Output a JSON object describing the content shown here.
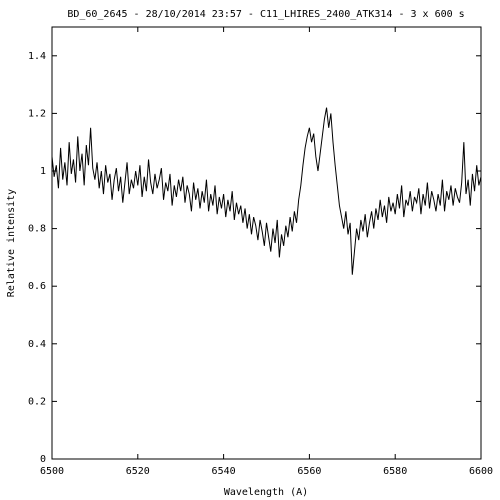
{
  "chart_data": {
    "type": "line",
    "title": "BD_60_2645 - 28/10/2014 23:57 - C11_LHIRES_2400_ATK314 - 3 x 600 s",
    "x_label": "Wavelength (A)",
    "y_label": "Relative intensity",
    "xlim": [
      6500,
      6600
    ],
    "xticks": [
      6500,
      6520,
      6540,
      6560,
      6580,
      6600
    ],
    "ylim": [
      0,
      1.5
    ],
    "yticks": [
      0,
      0.2,
      0.4,
      0.6,
      0.8,
      1,
      1.2,
      1.4
    ],
    "x": [
      6500,
      6500.5,
      6501,
      6501.5,
      6502,
      6502.5,
      6503,
      6503.5,
      6504,
      6504.5,
      6505,
      6505.5,
      6506,
      6506.5,
      6507,
      6507.5,
      6508,
      6508.5,
      6509,
      6509.5,
      6510,
      6510.5,
      6511,
      6511.5,
      6512,
      6512.5,
      6513,
      6513.5,
      6514,
      6514.5,
      6515,
      6515.5,
      6516,
      6516.5,
      6517,
      6517.5,
      6518,
      6518.5,
      6519,
      6519.5,
      6520,
      6520.5,
      6521,
      6521.5,
      6522,
      6522.5,
      6523,
      6523.5,
      6524,
      6524.5,
      6525,
      6525.5,
      6526,
      6526.5,
      6527,
      6527.5,
      6528,
      6528.5,
      6529,
      6529.5,
      6530,
      6530.5,
      6531,
      6531.5,
      6532,
      6532.5,
      6533,
      6533.5,
      6534,
      6534.5,
      6535,
      6535.5,
      6536,
      6536.5,
      6537,
      6537.5,
      6538,
      6538.5,
      6539,
      6539.5,
      6540,
      6540.5,
      6541,
      6541.5,
      6542,
      6542.5,
      6543,
      6543.5,
      6544,
      6544.5,
      6545,
      6545.5,
      6546,
      6546.5,
      6547,
      6547.5,
      6548,
      6548.5,
      6549,
      6549.5,
      6550,
      6550.5,
      6551,
      6551.5,
      6552,
      6552.5,
      6553,
      6553.5,
      6554,
      6554.5,
      6555,
      6555.5,
      6556,
      6556.5,
      6557,
      6557.5,
      6558,
      6558.5,
      6559,
      6559.5,
      6560,
      6560.5,
      6561,
      6561.5,
      6562,
      6562.5,
      6563,
      6563.5,
      6564,
      6564.5,
      6565,
      6565.5,
      6566,
      6566.5,
      6567,
      6567.5,
      6568,
      6568.5,
      6569,
      6569.5,
      6570,
      6570.5,
      6571,
      6571.5,
      6572,
      6572.5,
      6573,
      6573.5,
      6574,
      6574.5,
      6575,
      6575.5,
      6576,
      6576.5,
      6577,
      6577.5,
      6578,
      6578.5,
      6579,
      6579.5,
      6580,
      6580.5,
      6581,
      6581.5,
      6582,
      6582.5,
      6583,
      6583.5,
      6584,
      6584.5,
      6585,
      6585.5,
      6586,
      6586.5,
      6587,
      6587.5,
      6588,
      6588.5,
      6589,
      6589.5,
      6590,
      6590.5,
      6591,
      6591.5,
      6592,
      6592.5,
      6593,
      6593.5,
      6594,
      6594.5,
      6595,
      6595.5,
      6596,
      6596.5,
      6597,
      6597.5,
      6598,
      6598.5,
      6599,
      6599.5,
      6600
    ],
    "series": [
      {
        "color": "#000000",
        "values": [
          1.05,
          0.98,
          1.02,
          0.94,
          1.08,
          0.97,
          1.03,
          0.95,
          1.1,
          0.99,
          1.04,
          0.96,
          1.12,
          1.0,
          1.06,
          0.95,
          1.09,
          1.02,
          1.15,
          1.01,
          0.97,
          1.03,
          0.94,
          1.0,
          0.92,
          1.02,
          0.96,
          0.99,
          0.9,
          0.97,
          1.01,
          0.93,
          0.98,
          0.89,
          0.96,
          1.03,
          0.92,
          0.97,
          0.94,
          1.0,
          0.95,
          1.02,
          0.91,
          0.98,
          0.93,
          1.04,
          0.96,
          0.92,
          0.99,
          0.94,
          0.97,
          1.01,
          0.9,
          0.96,
          0.93,
          0.99,
          0.88,
          0.95,
          0.91,
          0.97,
          0.93,
          0.98,
          0.89,
          0.95,
          0.92,
          0.86,
          0.96,
          0.9,
          0.94,
          0.87,
          0.93,
          0.89,
          0.97,
          0.86,
          0.92,
          0.88,
          0.95,
          0.85,
          0.91,
          0.87,
          0.92,
          0.84,
          0.9,
          0.86,
          0.93,
          0.83,
          0.89,
          0.85,
          0.88,
          0.82,
          0.87,
          0.8,
          0.85,
          0.78,
          0.84,
          0.81,
          0.76,
          0.83,
          0.79,
          0.74,
          0.82,
          0.77,
          0.72,
          0.8,
          0.75,
          0.83,
          0.7,
          0.78,
          0.74,
          0.81,
          0.77,
          0.84,
          0.79,
          0.86,
          0.82,
          0.9,
          0.95,
          1.02,
          1.08,
          1.12,
          1.15,
          1.1,
          1.13,
          1.05,
          1.0,
          1.06,
          1.12,
          1.18,
          1.22,
          1.15,
          1.2,
          1.1,
          1.02,
          0.95,
          0.88,
          0.84,
          0.8,
          0.86,
          0.78,
          0.82,
          0.64,
          0.72,
          0.8,
          0.76,
          0.83,
          0.79,
          0.85,
          0.77,
          0.82,
          0.86,
          0.8,
          0.87,
          0.83,
          0.9,
          0.84,
          0.88,
          0.82,
          0.91,
          0.86,
          0.89,
          0.85,
          0.92,
          0.87,
          0.95,
          0.84,
          0.9,
          0.88,
          0.93,
          0.86,
          0.91,
          0.89,
          0.94,
          0.85,
          0.92,
          0.88,
          0.96,
          0.87,
          0.93,
          0.9,
          0.86,
          0.92,
          0.88,
          0.97,
          0.86,
          0.93,
          0.9,
          0.95,
          0.88,
          0.94,
          0.91,
          0.89,
          0.96,
          1.1,
          0.92,
          0.97,
          0.88,
          0.99,
          0.93,
          1.02,
          0.95,
          0.98
        ]
      }
    ]
  }
}
